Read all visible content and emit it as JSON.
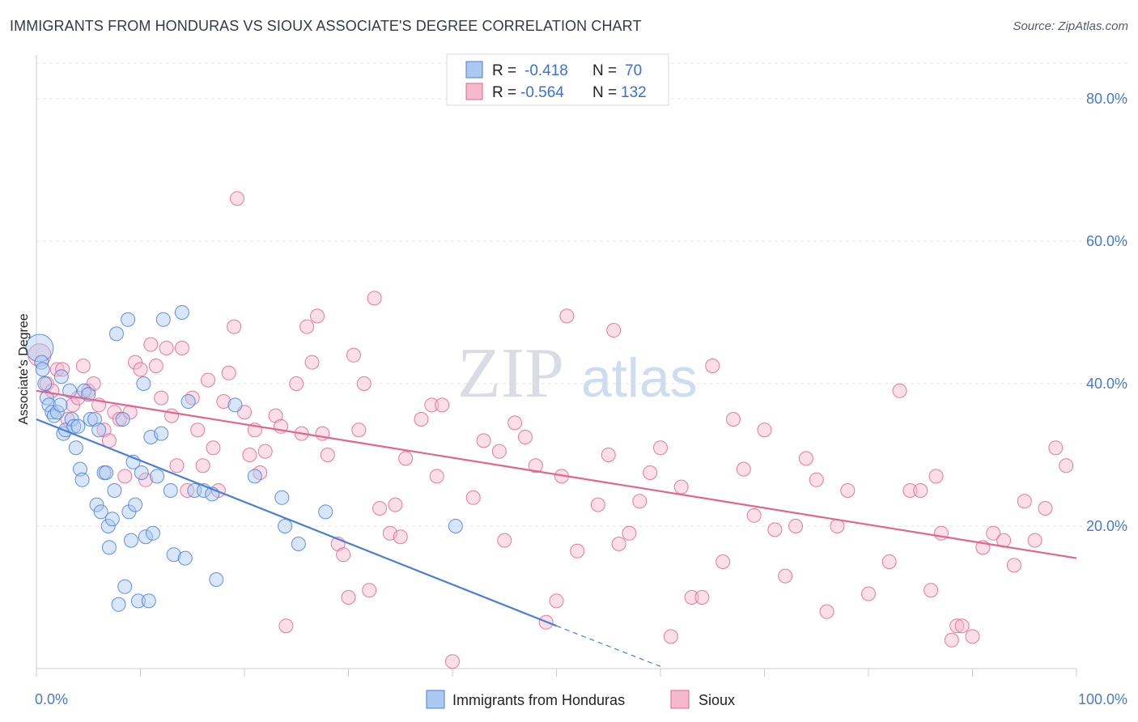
{
  "chart_data": {
    "type": "scatter",
    "title": "IMMIGRANTS FROM HONDURAS VS SIOUX ASSOCIATE'S DEGREE CORRELATION CHART",
    "source": "Source: ZipAtlas.com",
    "ylabel": "Associate's Degree",
    "xlim": [
      0,
      100
    ],
    "ylim": [
      0,
      85
    ],
    "x_tick_labels": [
      "0.0%",
      "100.0%"
    ],
    "y_ticks": [
      20,
      40,
      60,
      80
    ],
    "y_tick_labels": [
      "20.0%",
      "40.0%",
      "60.0%",
      "80.0%"
    ],
    "watermark": "ZIPatlas",
    "colors": {
      "blue": "#4a7fd6",
      "blue_fill": "#aac8f0",
      "pink": "#e0668f",
      "pink_fill": "#f5b8cc"
    },
    "legend": {
      "r_label": "R =",
      "n_label": "N =",
      "series": [
        {
          "name": "Immigrants from Honduras",
          "r": "-0.418",
          "n": "70"
        },
        {
          "name": "Sioux",
          "r": "-0.564",
          "n": "132"
        }
      ]
    },
    "series": [
      {
        "name": "Immigrants from Honduras",
        "trend": {
          "x1": 0,
          "y1": 35.0,
          "x2": 50,
          "y2": 6.0,
          "dash_to_x": 60,
          "dash_to_y": 0.3
        },
        "points": [
          [
            0.3,
            45,
            3
          ],
          [
            0.5,
            43,
            1
          ],
          [
            0.6,
            42,
            1
          ],
          [
            0.8,
            40,
            1
          ],
          [
            1,
            38,
            1
          ],
          [
            1.2,
            37,
            1
          ],
          [
            1.5,
            36,
            1
          ],
          [
            1.7,
            35.5,
            1
          ],
          [
            2,
            36,
            1
          ],
          [
            2.3,
            37,
            1
          ],
          [
            2.4,
            41,
            1
          ],
          [
            2.6,
            33,
            1
          ],
          [
            2.8,
            33.5,
            1
          ],
          [
            3.2,
            39,
            1
          ],
          [
            3.4,
            35,
            1
          ],
          [
            3.6,
            34,
            1
          ],
          [
            3.8,
            31,
            1
          ],
          [
            4,
            34,
            1
          ],
          [
            4.2,
            28,
            1
          ],
          [
            4.4,
            26.5,
            1
          ],
          [
            4.6,
            39,
            1
          ],
          [
            5,
            38.5,
            1
          ],
          [
            5.2,
            35,
            1
          ],
          [
            5.6,
            35,
            1
          ],
          [
            5.8,
            23,
            1
          ],
          [
            6,
            33.5,
            1
          ],
          [
            6.2,
            22,
            1
          ],
          [
            6.5,
            27.5,
            1
          ],
          [
            6.7,
            27.5,
            1
          ],
          [
            6.9,
            20,
            1
          ],
          [
            7,
            17,
            1
          ],
          [
            7.3,
            21,
            1
          ],
          [
            7.5,
            25,
            1
          ],
          [
            7.7,
            47,
            1
          ],
          [
            7.9,
            9,
            1
          ],
          [
            8.3,
            35,
            1
          ],
          [
            8.5,
            11.5,
            1
          ],
          [
            8.8,
            49,
            1
          ],
          [
            8.9,
            22,
            1
          ],
          [
            9.1,
            18,
            1
          ],
          [
            9.3,
            29,
            1
          ],
          [
            9.5,
            23,
            1
          ],
          [
            9.8,
            9.5,
            1
          ],
          [
            10.1,
            27.5,
            1
          ],
          [
            10.3,
            40,
            1
          ],
          [
            10.5,
            18.5,
            1
          ],
          [
            10.8,
            9.5,
            1
          ],
          [
            11,
            32.5,
            1
          ],
          [
            11.2,
            19,
            1
          ],
          [
            11.6,
            27,
            1
          ],
          [
            12,
            33,
            1
          ],
          [
            12.2,
            49,
            1
          ],
          [
            12.9,
            25,
            1
          ],
          [
            13.2,
            16,
            1
          ],
          [
            14,
            50,
            1
          ],
          [
            14.3,
            15.5,
            1
          ],
          [
            14.6,
            37.5,
            1
          ],
          [
            15.2,
            25,
            1
          ],
          [
            16.1,
            25,
            1
          ],
          [
            16.9,
            24.5,
            1
          ],
          [
            17.3,
            12.5,
            1
          ],
          [
            19.1,
            37,
            1
          ],
          [
            21,
            27,
            1
          ],
          [
            23.6,
            24,
            1
          ],
          [
            23.9,
            20,
            1
          ],
          [
            25.2,
            17.5,
            1
          ],
          [
            27.8,
            22,
            1
          ],
          [
            40.3,
            20,
            1
          ]
        ]
      },
      {
        "name": "Sioux",
        "trend": {
          "x1": 0,
          "y1": 39.0,
          "x2": 100,
          "y2": 15.5
        },
        "points": [
          [
            0.3,
            44,
            2
          ],
          [
            1,
            40,
            1
          ],
          [
            1.5,
            39,
            1
          ],
          [
            2,
            42,
            1
          ],
          [
            2.5,
            42,
            1
          ],
          [
            3,
            35,
            1
          ],
          [
            3.5,
            37,
            1
          ],
          [
            4,
            38,
            1
          ],
          [
            4.5,
            42.5,
            1
          ],
          [
            5,
            39,
            1
          ],
          [
            5.5,
            40,
            1
          ],
          [
            6,
            37,
            1
          ],
          [
            6.5,
            33.5,
            1
          ],
          [
            7,
            32,
            1
          ],
          [
            7.5,
            36,
            1
          ],
          [
            8,
            35,
            1
          ],
          [
            8.5,
            27,
            1
          ],
          [
            9,
            36,
            1
          ],
          [
            9.5,
            43,
            1
          ],
          [
            10,
            42,
            1
          ],
          [
            10.5,
            26.5,
            1
          ],
          [
            11,
            45.5,
            1
          ],
          [
            11.5,
            42.5,
            1
          ],
          [
            12,
            38,
            1
          ],
          [
            12.5,
            45,
            1
          ],
          [
            13,
            35.5,
            1
          ],
          [
            13.5,
            28.5,
            1
          ],
          [
            14,
            45,
            1
          ],
          [
            14.5,
            25,
            1
          ],
          [
            15,
            38,
            1
          ],
          [
            15.5,
            33.5,
            1
          ],
          [
            16,
            28.5,
            1
          ],
          [
            16.5,
            40.5,
            1
          ],
          [
            17,
            31,
            1
          ],
          [
            17.5,
            25,
            1
          ],
          [
            18,
            37.5,
            1
          ],
          [
            18.5,
            41.5,
            1
          ],
          [
            19,
            48,
            1
          ],
          [
            19.3,
            66,
            1
          ],
          [
            20,
            36,
            1
          ],
          [
            20.5,
            30,
            1
          ],
          [
            21,
            33.5,
            1
          ],
          [
            21.5,
            27.5,
            1
          ],
          [
            22,
            30.5,
            1
          ],
          [
            23,
            35.5,
            1
          ],
          [
            23.5,
            34,
            1
          ],
          [
            24,
            6,
            1
          ],
          [
            25,
            40,
            1
          ],
          [
            25.5,
            33,
            1
          ],
          [
            26,
            48,
            1
          ],
          [
            26.5,
            43,
            1
          ],
          [
            27,
            49.5,
            1
          ],
          [
            27.5,
            33,
            1
          ],
          [
            28,
            30,
            1
          ],
          [
            29,
            17.5,
            1
          ],
          [
            29.5,
            16,
            1
          ],
          [
            30,
            10,
            1
          ],
          [
            30.5,
            44,
            1
          ],
          [
            31,
            33.5,
            1
          ],
          [
            31.5,
            40,
            1
          ],
          [
            32,
            11,
            1
          ],
          [
            32.5,
            52,
            1
          ],
          [
            33,
            22.5,
            1
          ],
          [
            34,
            19,
            1
          ],
          [
            34.5,
            23,
            1
          ],
          [
            35,
            18.5,
            1
          ],
          [
            35.5,
            29.5,
            1
          ],
          [
            37,
            35,
            1
          ],
          [
            38,
            37,
            1
          ],
          [
            38.5,
            27,
            1
          ],
          [
            39,
            37,
            1
          ],
          [
            40,
            1,
            1
          ],
          [
            42,
            24,
            1
          ],
          [
            43,
            32,
            1
          ],
          [
            44.5,
            30.5,
            1
          ],
          [
            45,
            18,
            1
          ],
          [
            46,
            34.5,
            1
          ],
          [
            47,
            32.5,
            1
          ],
          [
            48,
            28.5,
            1
          ],
          [
            49,
            6.5,
            1
          ],
          [
            50,
            9.5,
            1
          ],
          [
            50.5,
            27,
            1
          ],
          [
            51,
            49.5,
            1
          ],
          [
            52,
            16.5,
            1
          ],
          [
            54,
            23,
            1
          ],
          [
            55,
            30,
            1
          ],
          [
            55.5,
            47.5,
            1
          ],
          [
            56,
            17.5,
            1
          ],
          [
            57,
            19,
            1
          ],
          [
            58,
            23.5,
            1
          ],
          [
            59,
            27.5,
            1
          ],
          [
            60,
            31,
            1
          ],
          [
            61,
            4.5,
            1
          ],
          [
            62,
            25.5,
            1
          ],
          [
            63,
            10,
            1
          ],
          [
            64,
            10,
            1
          ],
          [
            65,
            42.5,
            1
          ],
          [
            66,
            15,
            1
          ],
          [
            67,
            35,
            1
          ],
          [
            68,
            28,
            1
          ],
          [
            69,
            21.5,
            1
          ],
          [
            70,
            33.5,
            1
          ],
          [
            71,
            19.5,
            1
          ],
          [
            72,
            13,
            1
          ],
          [
            73,
            20,
            1
          ],
          [
            74,
            29.5,
            1
          ],
          [
            75,
            26.5,
            1
          ],
          [
            76,
            8,
            1
          ],
          [
            77,
            20,
            1
          ],
          [
            78,
            25,
            1
          ],
          [
            80,
            10.5,
            1
          ],
          [
            82,
            15,
            1
          ],
          [
            83,
            39,
            1
          ],
          [
            84,
            25,
            1
          ],
          [
            85,
            25,
            1
          ],
          [
            86,
            11,
            1
          ],
          [
            86.5,
            27,
            1
          ],
          [
            87,
            19,
            1
          ],
          [
            88,
            4,
            1
          ],
          [
            88.5,
            6,
            1
          ],
          [
            89,
            6,
            1
          ],
          [
            90,
            4.5,
            1
          ],
          [
            91,
            17,
            1
          ],
          [
            92,
            19,
            1
          ],
          [
            93,
            18,
            1
          ],
          [
            94,
            14.5,
            1
          ],
          [
            95,
            23.5,
            1
          ],
          [
            96,
            18,
            1
          ],
          [
            97,
            22.5,
            1
          ],
          [
            98,
            31,
            1
          ],
          [
            99,
            28.5,
            1
          ]
        ]
      }
    ]
  }
}
